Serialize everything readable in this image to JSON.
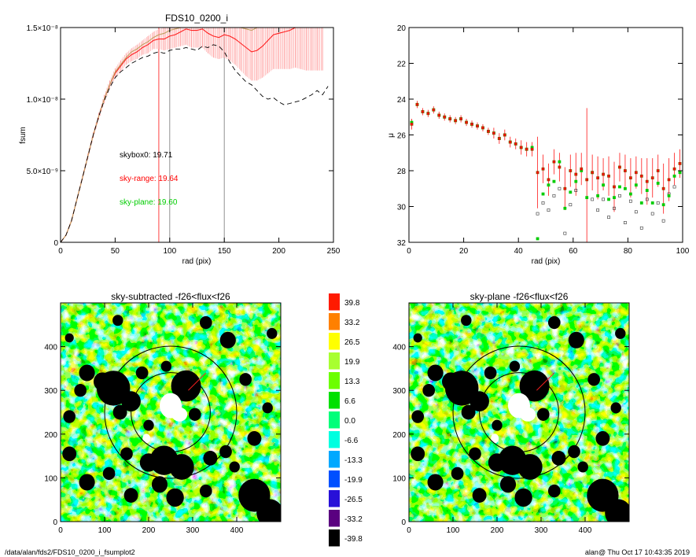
{
  "footer": {
    "path": "/data/alan/fds2/FDS10_0200_i_fsumplot2",
    "stamp": "alan@  Thu Oct 17 10:43:35 2019"
  },
  "chart_data": [
    {
      "id": "fsum",
      "type": "line",
      "title": "FDS10_0200_i",
      "xlabel": "rad (pix)",
      "ylabel": "fsum",
      "xlim": [
        0,
        250
      ],
      "ylim": [
        0,
        1.5e-08
      ],
      "x_ticks": [
        "0",
        "50",
        "100",
        "150",
        "200",
        "250"
      ],
      "y_ticks": [
        "0",
        "5.0×10⁻⁹",
        "1.0×10⁻⁸",
        "1.5×10⁻⁸"
      ],
      "vlines_red": [
        90
      ],
      "vlines_gray": [
        100,
        150
      ],
      "annotations": [
        {
          "text": "skybox0: 19.71",
          "color": "#000000"
        },
        {
          "text": "sky-range: 19.64",
          "color": "#ff0000"
        },
        {
          "text": "sky-plane: 19.60",
          "color": "#00cc00"
        }
      ],
      "series": [
        {
          "name": "sky-range",
          "color": "#ff2020",
          "style": "solid",
          "x": [
            0,
            5,
            10,
            15,
            20,
            25,
            30,
            35,
            40,
            45,
            50,
            55,
            60,
            65,
            70,
            75,
            80,
            85,
            90,
            95,
            100,
            105,
            110,
            115,
            120,
            125,
            130,
            135,
            140,
            145,
            150,
            155,
            160,
            165,
            170,
            175,
            180,
            185,
            190,
            195,
            200,
            205,
            210,
            215,
            220,
            225,
            230,
            235,
            240
          ],
          "y": [
            0,
            5e-10,
            1.5e-09,
            3e-09,
            4.5e-09,
            6e-09,
            7.5e-09,
            8.8e-09,
            1e-08,
            1.1e-08,
            1.18e-08,
            1.23e-08,
            1.28e-08,
            1.31e-08,
            1.33e-08,
            1.36e-08,
            1.38e-08,
            1.41e-08,
            1.42e-08,
            1.42e-08,
            1.44e-08,
            1.45e-08,
            1.47e-08,
            1.49e-08,
            1.48e-08,
            1.48e-08,
            1.49e-08,
            1.46e-08,
            1.44e-08,
            1.43e-08,
            1.45e-08,
            1.44e-08,
            1.42e-08,
            1.39e-08,
            1.36e-08,
            1.33e-08,
            1.34e-08,
            1.37e-08,
            1.41e-08,
            1.45e-08,
            1.46e-08,
            1.47e-08,
            1.48e-08,
            1.5e-08,
            1.5e-08,
            1.5e-08,
            1.5e-08,
            1.5e-08,
            1.5e-08
          ],
          "err": [
            0,
            5e-11,
            1e-10,
            1e-10,
            1.5e-10,
            2e-10,
            2e-10,
            2.5e-10,
            3e-10,
            3e-10,
            3.5e-10,
            4e-10,
            4e-10,
            4.5e-10,
            5e-10,
            5e-10,
            6e-10,
            6e-10,
            7e-10,
            8e-10,
            9e-10,
            9e-10,
            1e-09,
            1.1e-09,
            1.2e-09,
            1.2e-09,
            1.3e-09,
            1.4e-09,
            1.5e-09,
            1.5e-09,
            1.6e-09,
            1.7e-09,
            1.8e-09,
            1.9e-09,
            2e-09,
            2e-09,
            2.1e-09,
            2.2e-09,
            2.3e-09,
            2.4e-09,
            2.5e-09,
            2.6e-09,
            2.7e-09,
            2.8e-09,
            2.9e-09,
            3e-09,
            3e-09,
            3e-09,
            3e-09
          ]
        },
        {
          "name": "sky-plane",
          "color": "#c0a060",
          "style": "solid",
          "x": [
            0,
            5,
            10,
            15,
            20,
            25,
            30,
            35,
            40,
            45,
            50,
            55,
            60,
            65,
            70,
            75,
            80,
            85,
            90,
            95,
            100,
            105,
            110,
            115,
            120,
            125,
            130,
            135,
            140,
            145,
            150,
            155,
            160,
            165,
            170,
            175,
            180,
            185,
            190,
            195,
            200
          ],
          "y": [
            0,
            5e-10,
            1.5e-09,
            3e-09,
            4.5e-09,
            6e-09,
            7.5e-09,
            8.8e-09,
            1e-08,
            1.1e-08,
            1.19e-08,
            1.24e-08,
            1.29e-08,
            1.33e-08,
            1.35e-08,
            1.38e-08,
            1.4e-08,
            1.43e-08,
            1.45e-08,
            1.46e-08,
            1.48e-08,
            1.49e-08,
            1.5e-08,
            1.5e-08,
            1.5e-08,
            1.5e-08,
            1.5e-08,
            1.5e-08,
            1.5e-08,
            1.5e-08,
            1.5e-08,
            1.5e-08,
            1.5e-08,
            1.5e-08,
            1.49e-08,
            1.48e-08,
            1.5e-08,
            1.5e-08,
            1.5e-08,
            1.5e-08,
            1.5e-08
          ]
        },
        {
          "name": "skybox0",
          "color": "#000000",
          "style": "dashed",
          "x": [
            0,
            5,
            10,
            15,
            20,
            25,
            30,
            35,
            40,
            45,
            50,
            55,
            60,
            65,
            70,
            75,
            80,
            85,
            90,
            95,
            100,
            105,
            110,
            115,
            120,
            125,
            130,
            135,
            140,
            145,
            150,
            155,
            160,
            165,
            170,
            175,
            180,
            185,
            190,
            195,
            200,
            205,
            210,
            215,
            220,
            225,
            230,
            235,
            240,
            245
          ],
          "y": [
            0,
            5e-10,
            1.5e-09,
            3e-09,
            4.5e-09,
            6e-09,
            7.5e-09,
            8.8e-09,
            9.9e-09,
            1.08e-08,
            1.15e-08,
            1.19e-08,
            1.22e-08,
            1.25e-08,
            1.27e-08,
            1.29e-08,
            1.3e-08,
            1.32e-08,
            1.33e-08,
            1.32e-08,
            1.34e-08,
            1.35e-08,
            1.35e-08,
            1.36e-08,
            1.35e-08,
            1.34e-08,
            1.37e-08,
            1.36e-08,
            1.38e-08,
            1.37e-08,
            1.33e-08,
            1.26e-08,
            1.2e-08,
            1.16e-08,
            1.12e-08,
            1.1e-08,
            1.06e-08,
            1.02e-08,
            1e-08,
            1.01e-08,
            9.8e-09,
            9.6e-09,
            9.7e-09,
            9.8e-09,
            9.9e-09,
            1.01e-08,
            1.03e-08,
            1.06e-08,
            1.03e-08,
            1.09e-08
          ]
        }
      ]
    },
    {
      "id": "mu",
      "type": "scatter",
      "title": "",
      "xlabel": "rad (pix)",
      "ylabel": "μ",
      "xlim": [
        0,
        100
      ],
      "ylim": [
        32,
        20
      ],
      "x_ticks": [
        "0",
        "20",
        "40",
        "60",
        "80",
        "100"
      ],
      "y_ticks": [
        "20",
        "22",
        "24",
        "26",
        "28",
        "30",
        "32"
      ],
      "series": [
        {
          "name": "sky-range",
          "color": "#ff0000",
          "marker": "square",
          "x": [
            1,
            3,
            5,
            7,
            9,
            11,
            13,
            15,
            17,
            19,
            21,
            23,
            25,
            27,
            29,
            31,
            33,
            35,
            37,
            39,
            41,
            43,
            45,
            47,
            49,
            51,
            53,
            55,
            57,
            59,
            61,
            63,
            65,
            67,
            69,
            71,
            73,
            75,
            77,
            79,
            81,
            83,
            85,
            87,
            89,
            91,
            93,
            95,
            97,
            99
          ],
          "y": [
            25.4,
            24.3,
            24.7,
            24.8,
            24.6,
            24.9,
            25.0,
            25.1,
            25.2,
            25.1,
            25.3,
            25.4,
            25.5,
            25.6,
            25.8,
            25.9,
            26.2,
            26.0,
            26.4,
            26.5,
            26.7,
            26.8,
            26.8,
            28.1,
            27.9,
            28.5,
            27.5,
            27.8,
            29.0,
            28.0,
            28.2,
            27.9,
            28.5,
            28.1,
            28.4,
            28.2,
            28.3,
            28.9,
            27.8,
            28.0,
            28.4,
            28.1,
            28.3,
            28.6,
            28.4,
            28.0,
            29.0,
            28.5,
            27.9,
            27.6
          ],
          "err": [
            0.3,
            0.2,
            0.2,
            0.2,
            0.2,
            0.2,
            0.2,
            0.2,
            0.2,
            0.2,
            0.2,
            0.2,
            0.2,
            0.2,
            0.2,
            0.3,
            0.3,
            0.3,
            0.3,
            0.3,
            0.4,
            0.4,
            0.4,
            2.0,
            0.8,
            0.9,
            0.7,
            0.8,
            1.2,
            0.9,
            1.2,
            0.9,
            4.0,
            1.0,
            1.2,
            0.9,
            1.1,
            1.4,
            0.8,
            0.9,
            1.1,
            0.9,
            1.0,
            1.3,
            1.1,
            0.9,
            1.4,
            1.2,
            0.9,
            0.8
          ]
        },
        {
          "name": "sky-plane",
          "color": "#00cc00",
          "marker": "square",
          "x": [
            1,
            3,
            5,
            7,
            9,
            11,
            13,
            15,
            17,
            19,
            21,
            23,
            25,
            27,
            29,
            31,
            33,
            35,
            37,
            39,
            41,
            43,
            45,
            47,
            49,
            51,
            53,
            55,
            57,
            59,
            61,
            63,
            65,
            67,
            69,
            71,
            73,
            75,
            77,
            79,
            81,
            83,
            85,
            87,
            89,
            91,
            93,
            95,
            97,
            99
          ],
          "y": [
            25.3,
            24.3,
            24.7,
            24.8,
            24.6,
            24.9,
            25.0,
            25.1,
            25.2,
            25.1,
            25.3,
            25.4,
            25.5,
            25.6,
            25.8,
            25.9,
            26.2,
            26.0,
            26.4,
            26.5,
            26.7,
            26.8,
            26.7,
            31.8,
            29.3,
            28.8,
            28.6,
            27.5,
            30.1,
            29.2,
            28.6,
            28.0,
            29.5,
            28.1,
            29.4,
            28.8,
            29.6,
            29.5,
            28.9,
            29.0,
            29.3,
            28.8,
            29.8,
            29.1,
            29.8,
            28.7,
            29.9,
            29.4,
            28.3,
            28.1
          ]
        },
        {
          "name": "skybox0",
          "color": "#333333",
          "marker": "square-open",
          "x": [
            47,
            49,
            51,
            53,
            55,
            57,
            59,
            61,
            67,
            69,
            71,
            73,
            75,
            77,
            79,
            81,
            83,
            85,
            87,
            89,
            91,
            93,
            95,
            97
          ],
          "y": [
            30.4,
            29.8,
            30.2,
            29.4,
            29.0,
            31.5,
            29.9,
            29.1,
            29.6,
            30.2,
            29.6,
            30.6,
            30.1,
            29.4,
            30.9,
            29.7,
            30.3,
            31.2,
            29.6,
            30.4,
            29.8,
            30.8,
            29.3,
            28.9
          ]
        }
      ]
    },
    {
      "id": "img1",
      "type": "heatmap",
      "title": "sky-subtracted -f26<flux<f26",
      "xlim": [
        0,
        500
      ],
      "ylim": [
        0,
        500
      ],
      "x_ticks": [
        "0",
        "100",
        "200",
        "300",
        "400"
      ],
      "y_ticks": [
        "0",
        "100",
        "200",
        "300",
        "400"
      ]
    },
    {
      "id": "colorbar",
      "type": "heatmap",
      "levels": [
        {
          "label": "39.8",
          "color": "#ff1a00"
        },
        {
          "label": "33.2",
          "color": "#ff8000"
        },
        {
          "label": "26.5",
          "color": "#ffff00"
        },
        {
          "label": "19.9",
          "color": "#a8ff30"
        },
        {
          "label": "13.3",
          "color": "#6cff00"
        },
        {
          "label": "6.6",
          "color": "#00e000"
        },
        {
          "label": "0.0",
          "color": "#00ff7a"
        },
        {
          "label": "-6.6",
          "color": "#00ffe0"
        },
        {
          "label": "-13.3",
          "color": "#00a8ff"
        },
        {
          "label": "-19.9",
          "color": "#0050ff"
        },
        {
          "label": "-26.5",
          "color": "#2810d8"
        },
        {
          "label": "-33.2",
          "color": "#5a0080"
        },
        {
          "label": "-39.8",
          "color": "#000000"
        }
      ]
    },
    {
      "id": "img2",
      "type": "heatmap",
      "title": "sky-plane -f26<flux<f26",
      "xlim": [
        0,
        500
      ],
      "ylim": [
        0,
        500
      ],
      "x_ticks": [
        "0",
        "100",
        "200",
        "300",
        "400"
      ],
      "y_ticks": [
        "0",
        "100",
        "200",
        "300",
        "400"
      ]
    }
  ]
}
